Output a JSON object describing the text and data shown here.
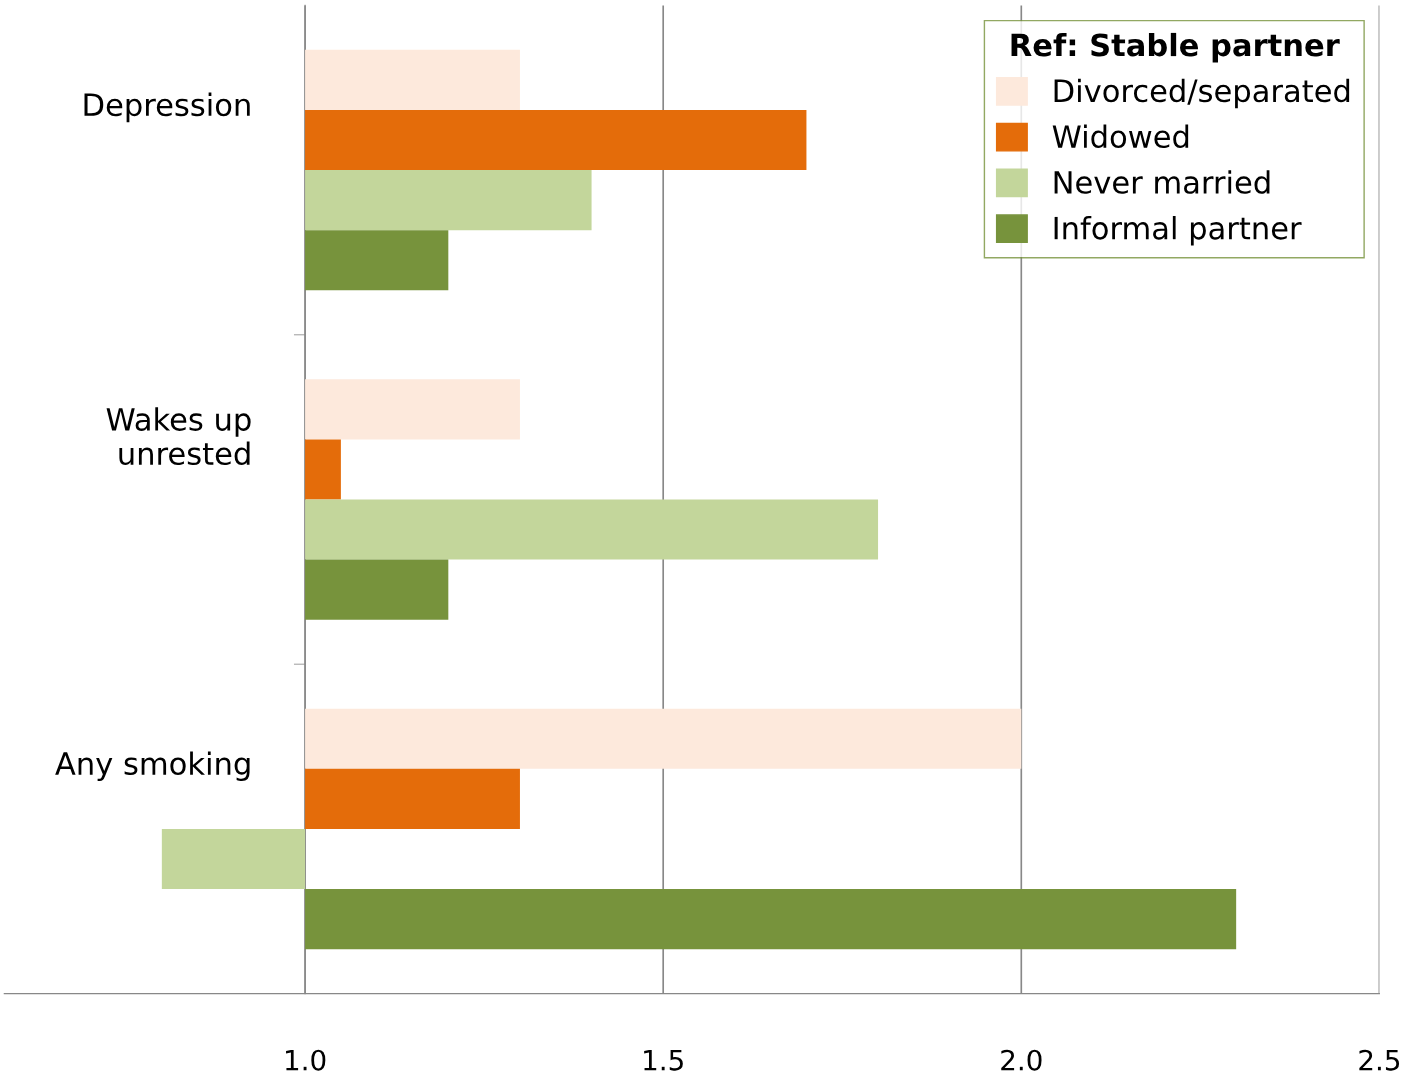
{
  "chart_data": {
    "type": "bar",
    "orientation": "horizontal",
    "categories": [
      "Depression",
      "Wakes up\nunrested",
      "Any smoking"
    ],
    "series": [
      {
        "name": "Divorced/separated",
        "color": "#fde9dc",
        "base": [
          1,
          1,
          1
        ],
        "values": [
          0.3,
          0.3,
          1.0
        ]
      },
      {
        "name": "Widowed",
        "color": "#e46c0a",
        "base": [
          1,
          1,
          1
        ],
        "values": [
          0.7,
          0.05,
          0.3
        ]
      },
      {
        "name": "Never married",
        "color": "#c3d69b",
        "base": [
          1,
          1,
          1
        ],
        "values": [
          0.4,
          0.8,
          -0.2
        ]
      },
      {
        "name": "Informal partner",
        "color": "#77933c",
        "base": [
          1,
          1,
          1
        ],
        "values": [
          0.2,
          0.2,
          1.3
        ]
      }
    ],
    "legend_title": "Ref: Stable partner",
    "legend": "top right",
    "xlim": [
      0.58,
      2.5
    ],
    "xticks": [
      {
        "value": 1.0,
        "label": "1.0"
      },
      {
        "value": 1.5,
        "label": "1.5"
      },
      {
        "value": 2.0,
        "label": "2.0"
      },
      {
        "value": 2.5,
        "label": "2.5"
      }
    ],
    "grid": "x"
  }
}
